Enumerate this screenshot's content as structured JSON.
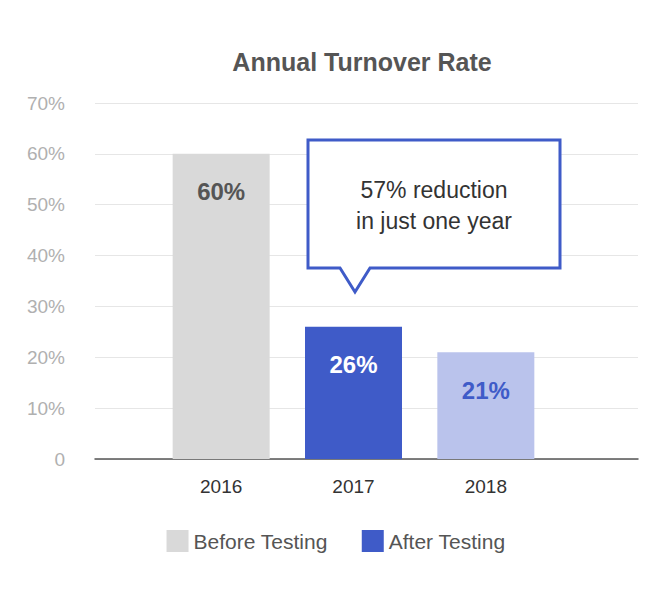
{
  "chart_data": {
    "type": "bar",
    "title": "Annual Turnover Rate",
    "categories": [
      "2016",
      "2017",
      "2018"
    ],
    "series": [
      {
        "name": "Before Testing",
        "color": "#d9d9d9",
        "values": [
          60,
          null,
          null
        ]
      },
      {
        "name": "After Testing",
        "color": "#3f5bc8",
        "values": [
          null,
          26,
          21
        ]
      }
    ],
    "colors": [
      "#d9d9d9",
      "#3f5bc8",
      "#bac3ec"
    ],
    "value_labels": [
      "60%",
      "26%",
      "21%"
    ],
    "data_labels": true,
    "stacked": true,
    "annotation": [
      "57% reduction",
      "in just one year"
    ],
    "ylim": [
      0,
      70
    ],
    "yticks": [
      0,
      {
        "value": 10,
        "label": "10%"
      },
      {
        "value": 20,
        "label": "20%"
      },
      {
        "value": 30,
        "label": "30%"
      },
      {
        "value": 40,
        "label": "40%"
      },
      {
        "value": 50,
        "label": "50%"
      },
      {
        "value": 60,
        "label": "60%"
      },
      {
        "value": 70,
        "label": "70%"
      }
    ],
    "grid": true,
    "legend": "bottom"
  }
}
